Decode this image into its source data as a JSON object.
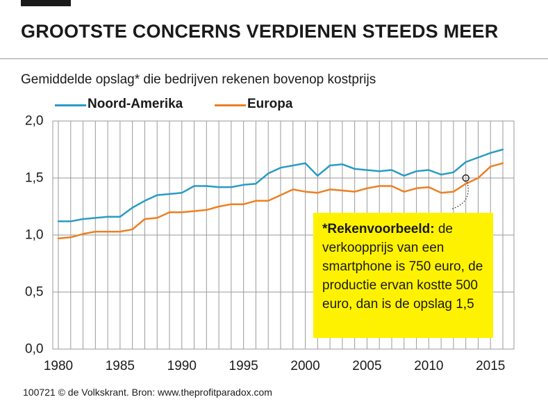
{
  "header": {
    "title": "GROOTSTE CONCERNS VERDIENEN STEEDS MEER",
    "subtitle": "Gemiddelde opslag* die bedrijven rekenen bovenop kostprijs"
  },
  "callout": {
    "bold_text": "*Rekenvoorbeeld:",
    "text": " de verkoopprijs van een smartphone is 750 euro, de productie ervan kostte 500 euro, dan is de opslag 1,5",
    "highlight_year": 2013,
    "highlight_value": 1.5
  },
  "footer": {
    "credit": "100721 © de Volkskrant. Bron: www.theprofitparadox.com"
  },
  "colors": {
    "background": "#ffffff",
    "grid": "#9a9a9a",
    "callout": "#fff200",
    "text": "#1a1a1a"
  },
  "chart_data": {
    "type": "line",
    "title": "Gemiddelde opslag* die bedrijven rekenen bovenop kostprijs",
    "xlabel": "",
    "ylabel": "",
    "xlim": [
      1980,
      2016
    ],
    "ylim": [
      0,
      2.0
    ],
    "grid": true,
    "legend": "top-left",
    "x_ticks": [
      1980,
      1985,
      1990,
      1995,
      2000,
      2005,
      2010,
      2015
    ],
    "y_ticks": [
      {
        "value": 0.0,
        "label": "0,0"
      },
      {
        "value": 0.5,
        "label": "0,5"
      },
      {
        "value": 1.0,
        "label": "1,0"
      },
      {
        "value": 1.5,
        "label": "1,5"
      },
      {
        "value": 2.0,
        "label": "2,0"
      }
    ],
    "x": [
      1980,
      1981,
      1982,
      1983,
      1984,
      1985,
      1986,
      1987,
      1988,
      1989,
      1990,
      1991,
      1992,
      1993,
      1994,
      1995,
      1996,
      1997,
      1998,
      1999,
      2000,
      2001,
      2002,
      2003,
      2004,
      2005,
      2006,
      2007,
      2008,
      2009,
      2010,
      2011,
      2012,
      2013,
      2014,
      2015,
      2016
    ],
    "series": [
      {
        "name": "Noord-Amerika",
        "color": "#2a9bc4",
        "values": [
          1.12,
          1.12,
          1.14,
          1.15,
          1.16,
          1.16,
          1.24,
          1.3,
          1.35,
          1.36,
          1.37,
          1.43,
          1.43,
          1.42,
          1.42,
          1.44,
          1.45,
          1.54,
          1.59,
          1.61,
          1.63,
          1.52,
          1.61,
          1.62,
          1.58,
          1.57,
          1.56,
          1.57,
          1.52,
          1.56,
          1.57,
          1.53,
          1.55,
          1.64,
          1.68,
          1.72,
          1.75
        ]
      },
      {
        "name": "Europa",
        "color": "#ee7f22",
        "values": [
          0.97,
          0.98,
          1.01,
          1.03,
          1.03,
          1.03,
          1.05,
          1.14,
          1.15,
          1.2,
          1.2,
          1.21,
          1.22,
          1.25,
          1.27,
          1.27,
          1.3,
          1.3,
          1.35,
          1.4,
          1.38,
          1.37,
          1.4,
          1.39,
          1.38,
          1.41,
          1.43,
          1.43,
          1.38,
          1.41,
          1.42,
          1.37,
          1.38,
          1.45,
          1.5,
          1.6,
          1.63
        ]
      }
    ]
  }
}
